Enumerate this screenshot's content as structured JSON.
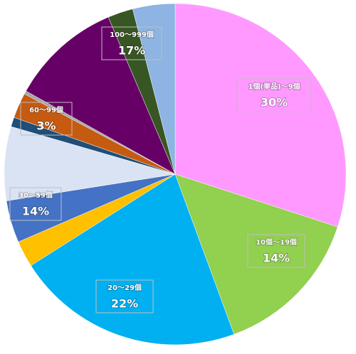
{
  "chart_data": {
    "type": "pie",
    "categories": [
      null,
      null,
      null,
      null,
      null,
      null,
      null,
      null,
      null,
      null,
      null,
      null
    ],
    "values": [
      30,
      14.4,
      21.6,
      2.5,
      4,
      7,
      0.9,
      2.4,
      0.3,
      10.5,
      2.4,
      4
    ],
    "colors": [
      "#ff99ff",
      "#92d050",
      "#00b0f0",
      "#ffc000",
      "#4472c4",
      "#dae3f3",
      "#1f4e79",
      "#c55a11",
      "#a5a5a5",
      "#660066",
      "#375623",
      "#8db4e2"
    ],
    "annotations": [
      {
        "label": "1個(単品)～9個",
        "percent": "30%"
      },
      {
        "label": "10個～19個",
        "percent": "14%"
      },
      {
        "label": "20～29個",
        "percent": "22%"
      },
      {
        "label": "30～59個",
        "percent": "14%"
      },
      {
        "label": "60～99個",
        "percent": "3%"
      },
      {
        "label": "100～999個",
        "percent": "17%"
      }
    ]
  }
}
